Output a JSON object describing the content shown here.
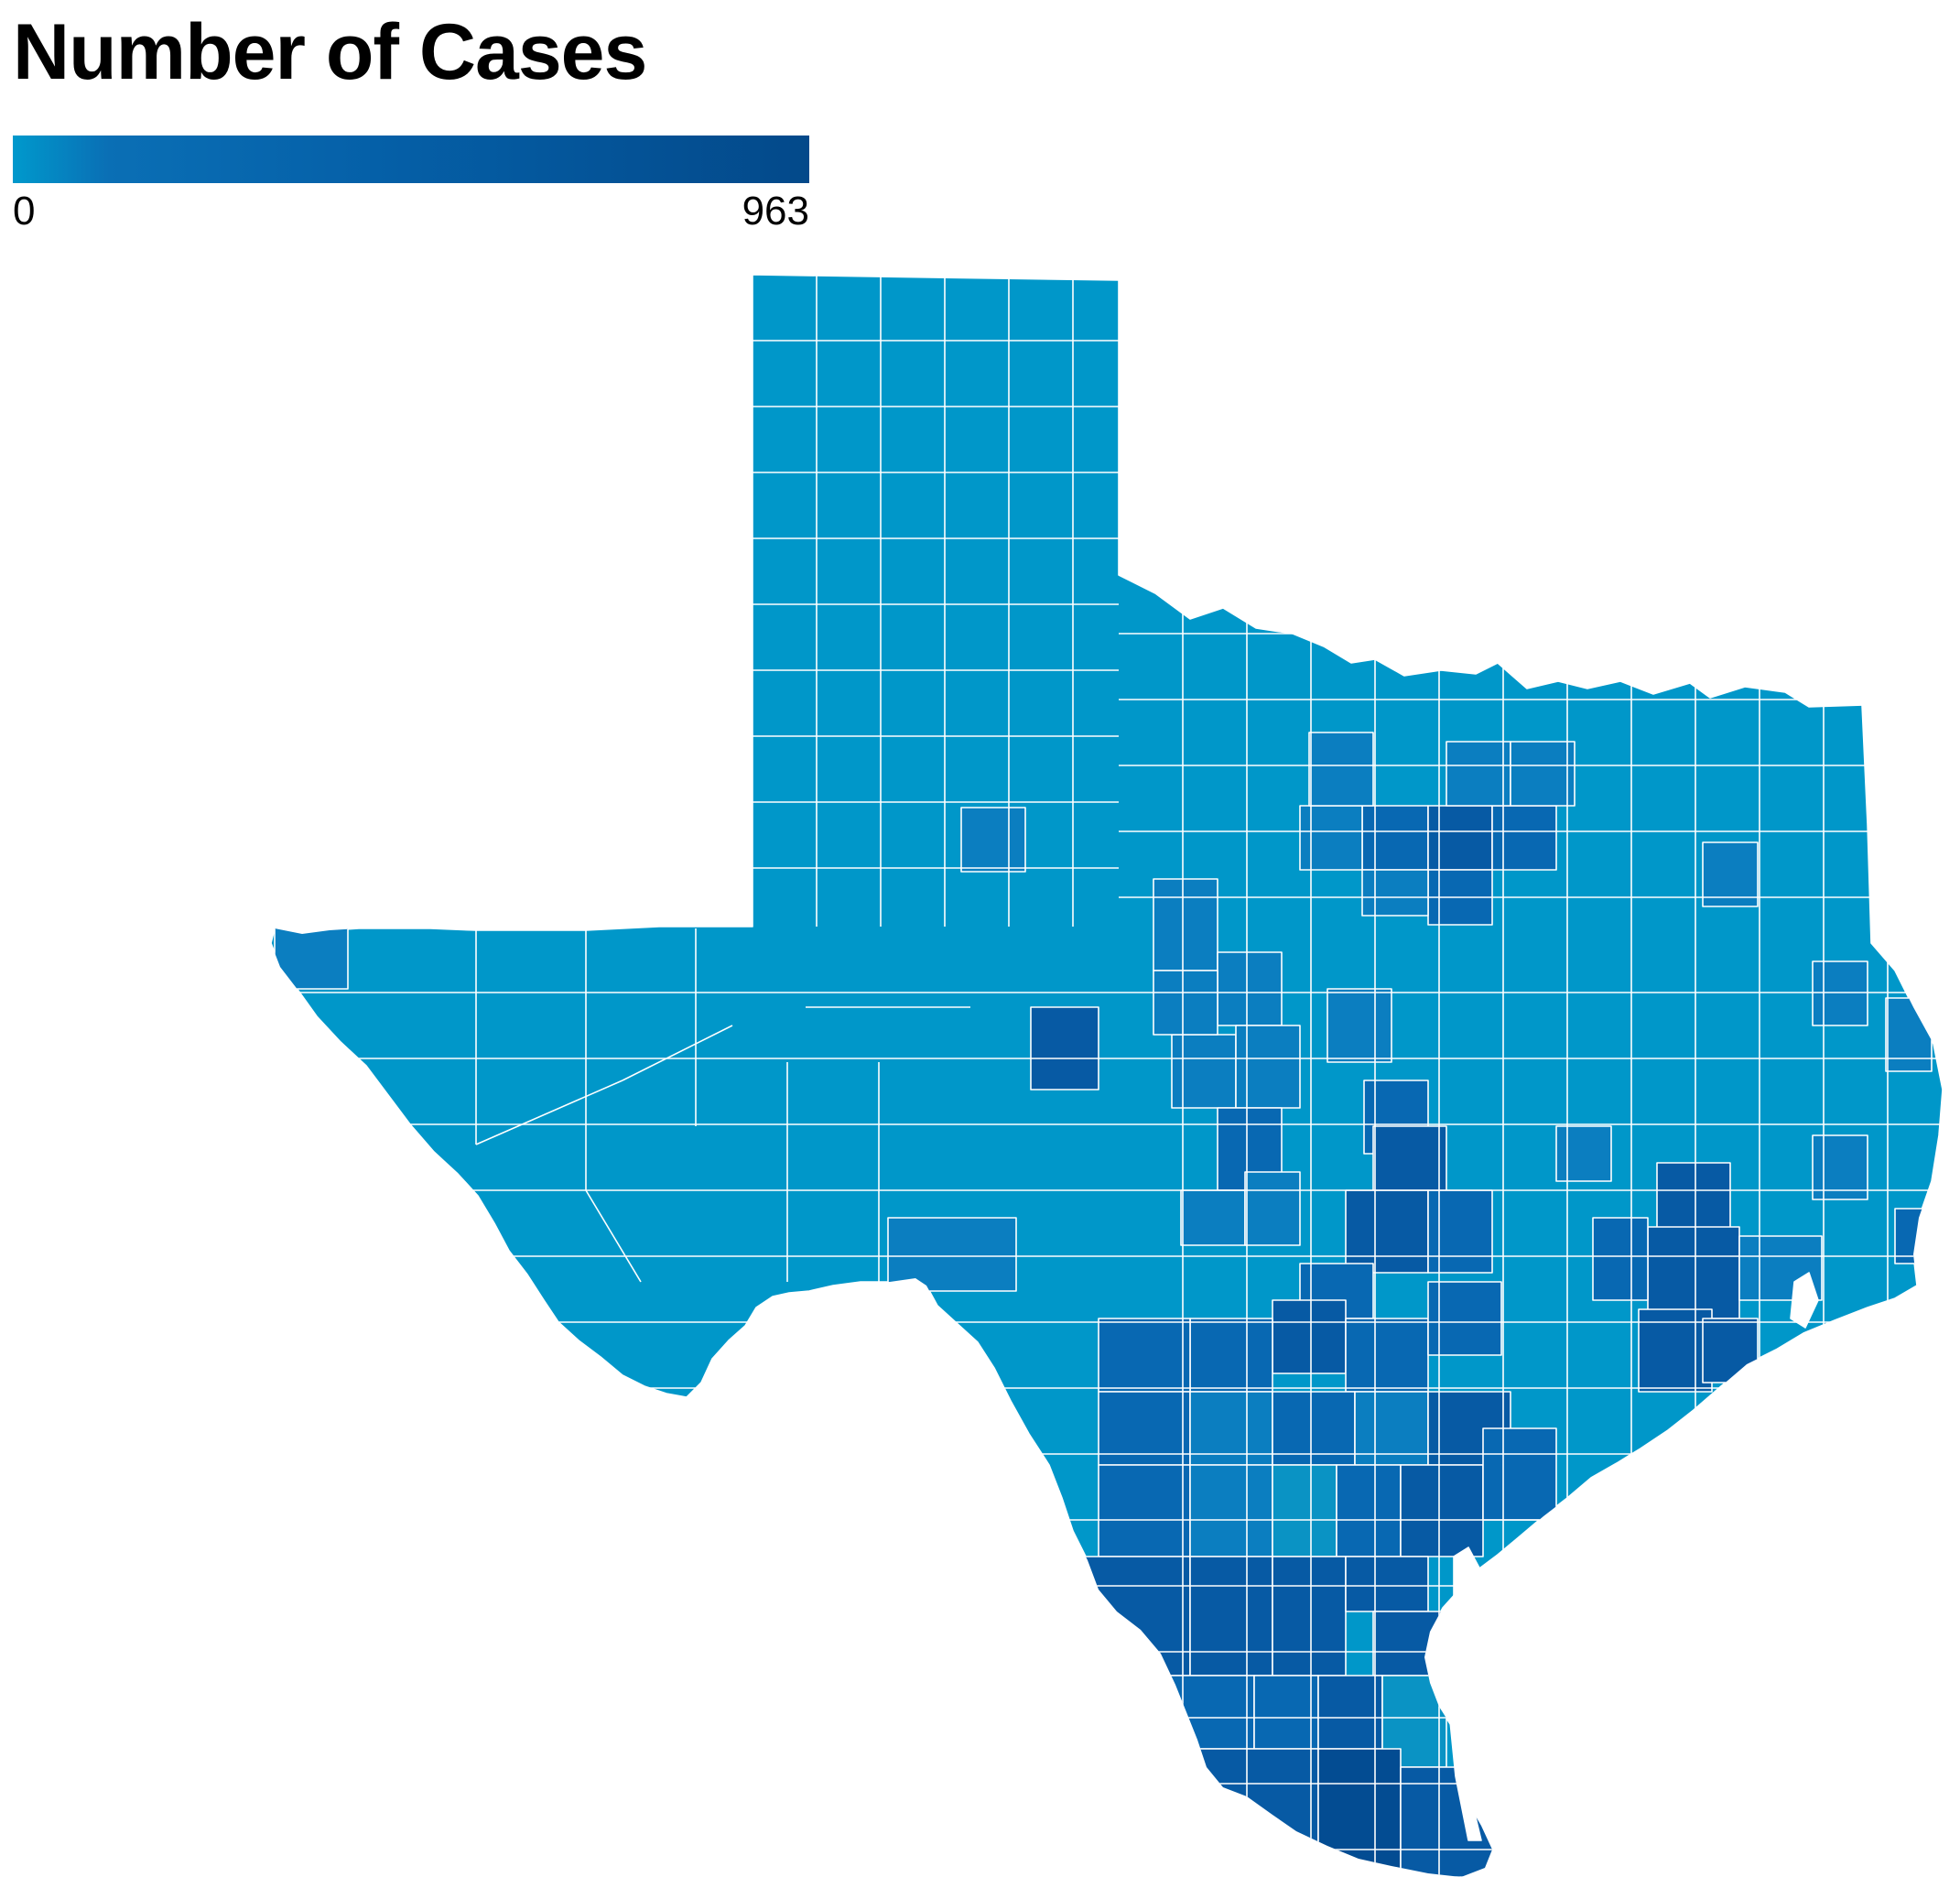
{
  "title": "Number of Cases",
  "legend": {
    "min_label": "0",
    "max_label": "963",
    "color_low": "#0099cc",
    "color_high": "#03498a"
  },
  "colors": {
    "base": "#0097c9",
    "light": "#0a93c4",
    "mid": "#0b7ec0",
    "midDark": "#0868b2",
    "dark": "#075aa4",
    "darkest": "#034c92"
  },
  "chart_data": {
    "type": "heatmap",
    "region": "Texas counties",
    "color_scale": {
      "min": 0,
      "max": 963
    }
  }
}
